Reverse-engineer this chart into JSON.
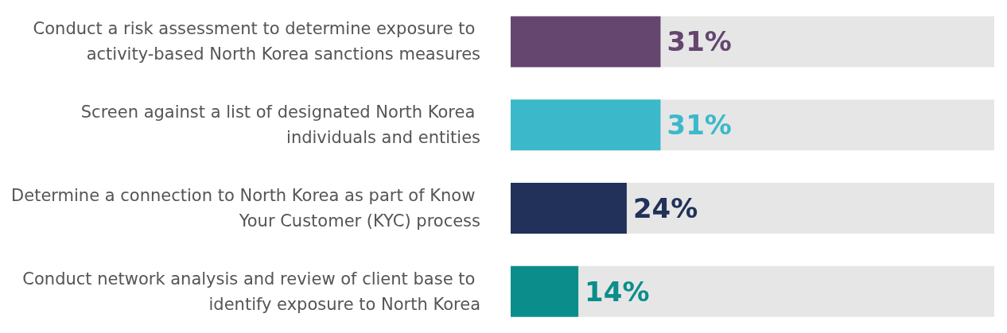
{
  "chart_data": {
    "type": "bar",
    "orientation": "horizontal",
    "categories": [
      "Conduct a risk assessment to determine exposure to activity-based North Korea sanctions measures",
      "Screen against a list of designated North Korea individuals and entities",
      "Determine a connection to North Korea as part of Know Your Customer (KYC) process",
      "Conduct network analysis and review of client base to identify exposure to North Korea"
    ],
    "values": [
      31,
      31,
      24,
      14
    ],
    "colors": [
      "#65466f",
      "#3bb9cb",
      "#213159",
      "#0b8e8b"
    ],
    "value_labels": [
      "31%",
      "31%",
      "24%",
      "14%"
    ],
    "xlim": [
      0,
      100
    ],
    "tick_labels": "y"
  }
}
